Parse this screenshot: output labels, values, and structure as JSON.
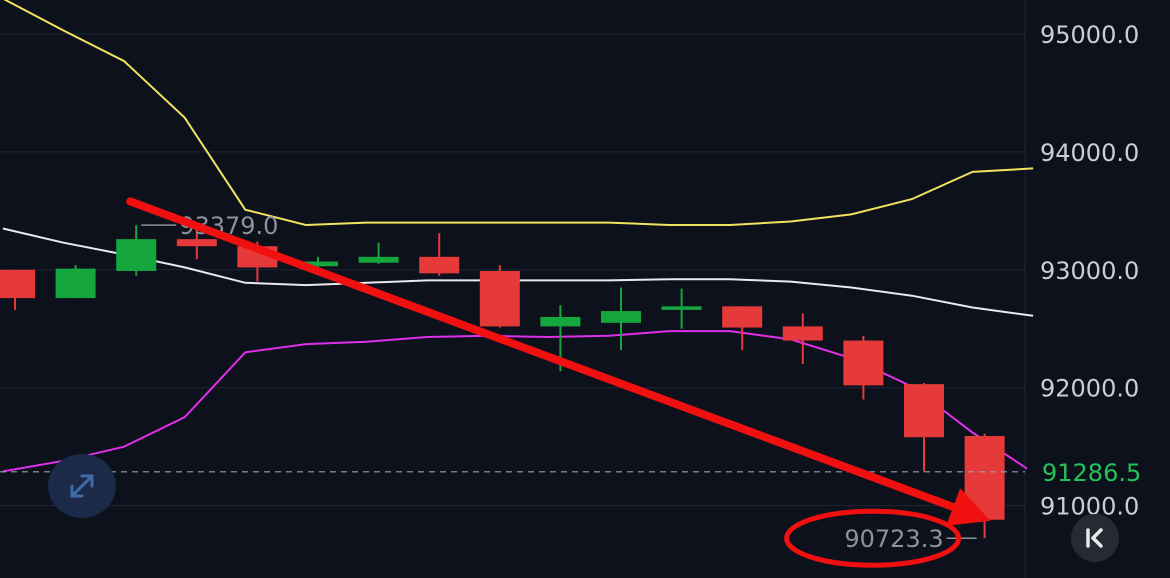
{
  "chart_data": {
    "type": "candlestick",
    "y_axis": {
      "ticks": [
        95000.0,
        94000.0,
        93000.0,
        92000.0,
        91000.0
      ],
      "tick_labels": [
        "95000.0",
        "94000.0",
        "93000.0",
        "92000.0",
        "91000.0"
      ],
      "range": [
        90480,
        95300
      ]
    },
    "last_price": {
      "value": 91286.5,
      "label": "91286.5",
      "color": "#24c35a"
    },
    "high_marker": {
      "value": 93379.0,
      "label": "93379.0"
    },
    "low_marker": {
      "value": 90723.3,
      "label": "90723.3"
    },
    "candles": [
      {
        "o": 93000,
        "h": 93000,
        "l": 92660,
        "c": 92760
      },
      {
        "o": 92760,
        "h": 93040,
        "l": 92760,
        "c": 93010
      },
      {
        "o": 92990,
        "h": 93379,
        "l": 92950,
        "c": 93260
      },
      {
        "o": 93260,
        "h": 93340,
        "l": 93090,
        "c": 93200
      },
      {
        "o": 93200,
        "h": 93240,
        "l": 92900,
        "c": 93020
      },
      {
        "o": 93030,
        "h": 93110,
        "l": 92990,
        "c": 93070
      },
      {
        "o": 93060,
        "h": 93230,
        "l": 93050,
        "c": 93110
      },
      {
        "o": 93110,
        "h": 93310,
        "l": 92950,
        "c": 92970
      },
      {
        "o": 92990,
        "h": 93040,
        "l": 92510,
        "c": 92520
      },
      {
        "o": 92520,
        "h": 92700,
        "l": 92140,
        "c": 92600
      },
      {
        "o": 92550,
        "h": 92850,
        "l": 92320,
        "c": 92650
      },
      {
        "o": 92660,
        "h": 92840,
        "l": 92500,
        "c": 92690
      },
      {
        "o": 92690,
        "h": 92690,
        "l": 92320,
        "c": 92510
      },
      {
        "o": 92520,
        "h": 92630,
        "l": 92200,
        "c": 92400
      },
      {
        "o": 92400,
        "h": 92440,
        "l": 91900,
        "c": 92020
      },
      {
        "o": 92030,
        "h": 92040,
        "l": 91290,
        "c": 91580
      },
      {
        "o": 91590,
        "h": 91610,
        "l": 90723.3,
        "c": 90880
      }
    ],
    "bands": {
      "upper": [
        95300,
        95030,
        94770,
        94290,
        93510,
        93380,
        93400,
        93400,
        93400,
        93400,
        93400,
        93380,
        93380,
        93410,
        93470,
        93600,
        93830,
        93860
      ],
      "middle": [
        93350,
        93230,
        93130,
        93020,
        92890,
        92870,
        92890,
        92910,
        92910,
        92910,
        92910,
        92920,
        92920,
        92900,
        92850,
        92780,
        92680,
        92610
      ],
      "lower": [
        91290,
        91380,
        91500,
        91750,
        92300,
        92370,
        92390,
        92430,
        92440,
        92430,
        92440,
        92480,
        92480,
        92410,
        92250,
        92010,
        91620,
        91280
      ]
    },
    "colors": {
      "up": "#16a63e",
      "down": "#e63a3a",
      "upper_band": "#f2e35e",
      "middle_band": "#e9e9ee",
      "lower_band": "#e02fe8",
      "arrow": "#f01010",
      "grid": "#1e2635"
    },
    "annotations": [
      {
        "type": "arrow",
        "from": {
          "candle": 1.9,
          "price": 93580
        },
        "to": {
          "candle": 16.1,
          "price": 90870
        }
      },
      {
        "type": "ellipse",
        "around": "low_marker"
      }
    ]
  }
}
